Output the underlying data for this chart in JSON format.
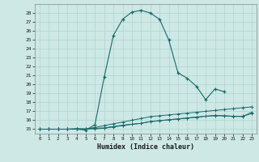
{
  "xlabel": "Humidex (Indice chaleur)",
  "bg_color": "#cde8e5",
  "grid_color": "#b0d4d0",
  "line_color": "#1a6b6b",
  "x_values": [
    0,
    1,
    2,
    3,
    4,
    5,
    6,
    7,
    8,
    9,
    10,
    11,
    12,
    13,
    14,
    15,
    16,
    17,
    18,
    19,
    20,
    21,
    22,
    23
  ],
  "line1_y": [
    15.0,
    15.0,
    15.0,
    15.0,
    15.0,
    14.9,
    15.5,
    20.8,
    25.5,
    27.3,
    28.1,
    28.3,
    28.0,
    27.3,
    25.0,
    21.3,
    20.7,
    19.8,
    18.3,
    19.5,
    19.2,
    null,
    null,
    null
  ],
  "line2_y": [
    15.0,
    15.0,
    15.0,
    15.0,
    15.0,
    15.0,
    15.2,
    15.4,
    15.6,
    15.8,
    16.0,
    16.2,
    16.4,
    16.5,
    16.6,
    16.7,
    16.8,
    16.9,
    17.0,
    17.1,
    17.2,
    17.3,
    17.4,
    17.5
  ],
  "line3_y": [
    15.0,
    15.0,
    15.0,
    15.0,
    15.05,
    15.05,
    15.1,
    15.15,
    15.3,
    15.45,
    15.55,
    15.65,
    15.85,
    15.95,
    16.05,
    16.15,
    16.25,
    16.35,
    16.45,
    16.5,
    16.5,
    16.45,
    16.45,
    16.75
  ],
  "line4_y": [
    15.0,
    15.0,
    15.0,
    15.0,
    15.05,
    15.0,
    15.05,
    15.1,
    15.25,
    15.4,
    15.55,
    15.65,
    15.85,
    15.95,
    16.05,
    16.15,
    16.25,
    16.35,
    16.45,
    16.55,
    16.5,
    16.42,
    16.42,
    16.9
  ],
  "ylim": [
    14.5,
    29.0
  ],
  "yticks": [
    15,
    16,
    17,
    18,
    19,
    20,
    21,
    22,
    23,
    24,
    25,
    26,
    27,
    28
  ],
  "xlim": [
    -0.5,
    23.5
  ],
  "xticks": [
    0,
    1,
    2,
    3,
    4,
    5,
    6,
    7,
    8,
    9,
    10,
    11,
    12,
    13,
    14,
    15,
    16,
    17,
    18,
    19,
    20,
    21,
    22,
    23
  ]
}
